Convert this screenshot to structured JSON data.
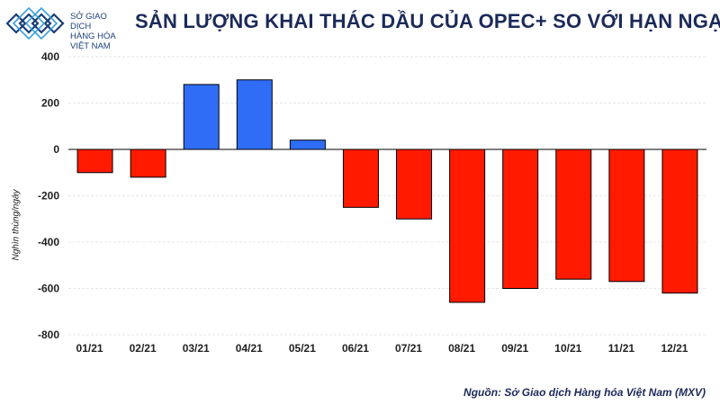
{
  "logo": {
    "icon": "diamond-weave-logo",
    "line1": "SỞ GIAO DỊCH",
    "line2": "HÀNG HÓA",
    "line3": "VIỆT NAM",
    "color": "#1b3f7a"
  },
  "title": "SẢN LƯỢNG KHAI THÁC DẦU CỦA OPEC+ SO VỚI HẠN NGẠCH",
  "source": "Nguồn: Sở Giao dịch Hàng hóa Việt Nam (MXV)",
  "chart_data": {
    "type": "bar",
    "title": "SẢN LƯỢNG KHAI THÁC DẦU CỦA OPEC+ SO VỚI HẠN NGẠCH",
    "xlabel": "",
    "ylabel": "Nghìn thùng/ngày",
    "categories": [
      "01/21",
      "02/21",
      "03/21",
      "04/21",
      "05/21",
      "06/21",
      "07/21",
      "08/21",
      "09/21",
      "10/21",
      "11/21",
      "12/21"
    ],
    "values": [
      -100,
      -120,
      280,
      300,
      40,
      -250,
      -300,
      -660,
      -600,
      -560,
      -570,
      -620
    ],
    "ylim": [
      -800,
      400
    ],
    "yticks": [
      400,
      200,
      0,
      -200,
      -400,
      -600,
      -800
    ],
    "grid": true,
    "legend": "none",
    "colors": {
      "positive": "#2f6df6",
      "negative": "#ff1a00",
      "border": "#000000",
      "grid": "#e6e6e6"
    }
  }
}
